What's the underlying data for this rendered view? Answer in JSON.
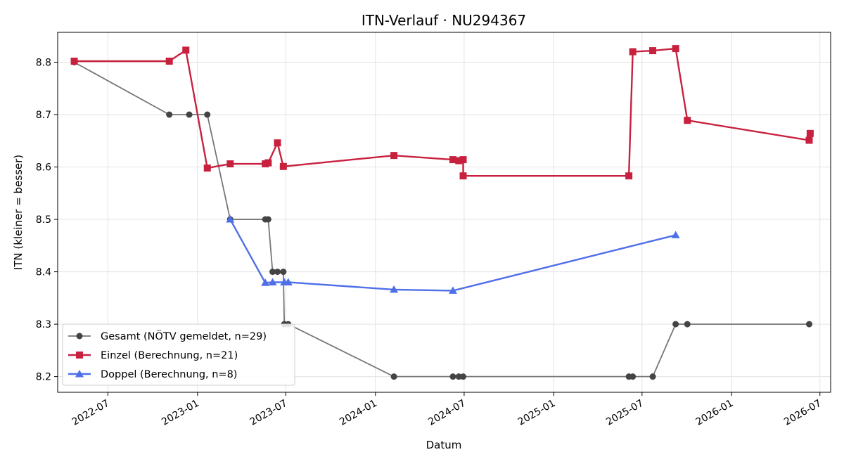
{
  "chart_data": {
    "type": "line",
    "title": "ITN-Verlauf · NU294367",
    "xlabel": "Datum",
    "ylabel": "ITN  (kleiner = besser)",
    "xlim": [
      "2022-03-20",
      "2026-07-23"
    ],
    "ylim": [
      8.17,
      8.857
    ],
    "x_ticks": [
      "2022-07-01",
      "2023-01-01",
      "2023-07-01",
      "2024-01-01",
      "2024-07-01",
      "2025-01-01",
      "2025-07-01",
      "2026-01-01",
      "2026-07-01"
    ],
    "x_tick_labels": [
      "2022-07",
      "2023-01",
      "2023-07",
      "2024-01",
      "2024-07",
      "2025-01",
      "2025-07",
      "2026-01",
      "2026-07"
    ],
    "y_ticks": [
      8.2,
      8.3,
      8.4,
      8.5,
      8.6,
      8.7,
      8.8
    ],
    "y_tick_labels": [
      "8.2",
      "8.3",
      "8.4",
      "8.5",
      "8.6",
      "8.7",
      "8.8"
    ],
    "grid": true,
    "legend_position": "lower-left",
    "series": [
      {
        "name": "Gesamt (NÖTV gemeldet, n=29)",
        "color": "#777777",
        "marker_color": "#444444",
        "marker": "circle",
        "points": [
          {
            "x": "2022-04-23",
            "y": 8.8
          },
          {
            "x": "2022-11-04",
            "y": 8.7
          },
          {
            "x": "2022-12-15",
            "y": 8.7
          },
          {
            "x": "2023-01-21",
            "y": 8.7
          },
          {
            "x": "2023-03-09",
            "y": 8.5
          },
          {
            "x": "2023-05-20",
            "y": 8.5
          },
          {
            "x": "2023-05-26",
            "y": 8.5
          },
          {
            "x": "2023-06-04",
            "y": 8.4
          },
          {
            "x": "2023-06-14",
            "y": 8.4
          },
          {
            "x": "2023-06-26",
            "y": 8.4
          },
          {
            "x": "2023-06-28",
            "y": 8.3
          },
          {
            "x": "2023-07-06",
            "y": 8.3
          },
          {
            "x": "2024-02-08",
            "y": 8.2
          },
          {
            "x": "2024-06-08",
            "y": 8.2
          },
          {
            "x": "2024-06-20",
            "y": 8.2
          },
          {
            "x": "2024-06-29",
            "y": 8.2
          },
          {
            "x": "2025-06-04",
            "y": 8.2
          },
          {
            "x": "2025-06-12",
            "y": 8.2
          },
          {
            "x": "2025-07-23",
            "y": 8.2
          },
          {
            "x": "2025-09-08",
            "y": 8.3
          },
          {
            "x": "2025-10-02",
            "y": 8.3
          },
          {
            "x": "2026-06-09",
            "y": 8.3
          }
        ]
      },
      {
        "name": "Einzel (Berechnung, n=21)",
        "color": "#c8213f",
        "marker_color": "#c8213f",
        "marker": "square",
        "points": [
          {
            "x": "2022-04-23",
            "y": 8.802
          },
          {
            "x": "2022-11-04",
            "y": 8.802
          },
          {
            "x": "2022-12-08",
            "y": 8.823
          },
          {
            "x": "2023-01-21",
            "y": 8.598
          },
          {
            "x": "2023-03-09",
            "y": 8.606
          },
          {
            "x": "2023-05-20",
            "y": 8.606
          },
          {
            "x": "2023-05-26",
            "y": 8.608
          },
          {
            "x": "2023-06-14",
            "y": 8.646
          },
          {
            "x": "2023-06-26",
            "y": 8.601
          },
          {
            "x": "2024-02-08",
            "y": 8.622
          },
          {
            "x": "2024-06-08",
            "y": 8.614
          },
          {
            "x": "2024-06-20",
            "y": 8.612
          },
          {
            "x": "2024-06-29",
            "y": 8.614
          },
          {
            "x": "2024-06-29",
            "y": 8.583
          },
          {
            "x": "2025-06-04",
            "y": 8.583
          },
          {
            "x": "2025-06-12",
            "y": 8.82
          },
          {
            "x": "2025-07-23",
            "y": 8.822
          },
          {
            "x": "2025-09-08",
            "y": 8.826
          },
          {
            "x": "2025-10-02",
            "y": 8.689
          },
          {
            "x": "2026-06-09",
            "y": 8.651
          },
          {
            "x": "2026-06-11",
            "y": 8.664
          }
        ]
      },
      {
        "name": "Doppel (Berechnung, n=8)",
        "color": "#4f6fe8",
        "marker_color": "#4f6fe8",
        "marker": "triangle",
        "points": [
          {
            "x": "2023-03-09",
            "y": 8.5
          },
          {
            "x": "2023-05-20",
            "y": 8.379
          },
          {
            "x": "2023-06-04",
            "y": 8.38
          },
          {
            "x": "2023-06-28",
            "y": 8.38
          },
          {
            "x": "2023-07-06",
            "y": 8.38
          },
          {
            "x": "2024-02-08",
            "y": 8.366
          },
          {
            "x": "2024-06-08",
            "y": 8.364
          },
          {
            "x": "2025-09-08",
            "y": 8.47
          }
        ]
      }
    ]
  }
}
